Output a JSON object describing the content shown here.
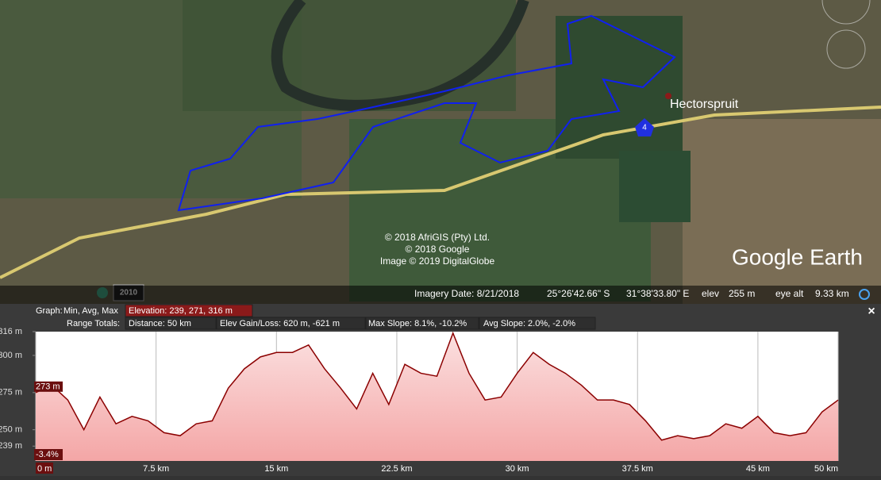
{
  "map": {
    "place": "Hectorspruit",
    "route_shield": "4",
    "history_year": "2010",
    "copyright": [
      "© 2018 AfriGIS (Pty) Ltd.",
      "© 2018 Google",
      "Image © 2019 DigitalGlobe"
    ],
    "logo": "Google Earth",
    "status": {
      "imagery_date": "Imagery Date: 8/21/2018",
      "lat": "25°26'42.66\" S",
      "lon": "31°38'33.80\" E",
      "elev_label": "elev",
      "elev": "255 m",
      "eye_alt_label": "eye alt",
      "eye_alt": "9.33 km"
    }
  },
  "stats": {
    "graph_label": "Graph:",
    "graph_mode": "Min, Avg, Max",
    "elevation": "Elevation: 239, 271, 316 m",
    "range_label": "Range Totals:",
    "distance": "Distance: 50 km",
    "gain_loss": "Elev Gain/Loss: 620 m, -621 m",
    "max_slope": "Max Slope: 8.1%, -10.2%",
    "avg_slope": "Avg Slope: 2.0%, -2.0%",
    "close": "×"
  },
  "cursor": {
    "elevation": "273 m",
    "slope": "-3.4%"
  },
  "chart_data": {
    "type": "area",
    "color": "#8b0000",
    "x": [
      0,
      1,
      2,
      3,
      4,
      5,
      6,
      7,
      8,
      9,
      10,
      11,
      12,
      13,
      14,
      15,
      16,
      17,
      18,
      19,
      20,
      21,
      22,
      23,
      24,
      25,
      26,
      27,
      28,
      29,
      30,
      31,
      32,
      33,
      34,
      35,
      36,
      37,
      38,
      39,
      40,
      41,
      42,
      43,
      44,
      45,
      46,
      47,
      48,
      49,
      50
    ],
    "values": [
      275,
      280,
      270,
      250,
      272,
      254,
      259,
      256,
      248,
      246,
      254,
      256,
      278,
      291,
      299,
      302,
      302,
      307,
      291,
      278,
      264,
      288,
      267,
      294,
      288,
      286,
      315,
      288,
      270,
      272,
      288,
      302,
      294,
      288,
      280,
      270,
      270,
      267,
      256,
      243,
      246,
      244,
      246,
      254,
      251,
      259,
      248,
      246,
      248,
      262,
      270
    ],
    "xlim": [
      0,
      50
    ],
    "ylim": [
      229,
      316
    ],
    "xticks": [
      {
        "value": 0,
        "label": "0 m"
      },
      {
        "value": 7.5,
        "label": "7.5 km"
      },
      {
        "value": 15,
        "label": "15 km"
      },
      {
        "value": 22.5,
        "label": "22.5 km"
      },
      {
        "value": 30,
        "label": "30 km"
      },
      {
        "value": 37.5,
        "label": "37.5 km"
      },
      {
        "value": 45,
        "label": "45 km"
      },
      {
        "value": 50,
        "label": "50 km"
      }
    ],
    "yticks": [
      {
        "value": 239,
        "label": "239 m"
      },
      {
        "value": 250,
        "label": "250 m"
      },
      {
        "value": 275,
        "label": "275 m"
      },
      {
        "value": 300,
        "label": "300 m"
      },
      {
        "value": 316,
        "label": "316 m"
      }
    ],
    "grid": true
  }
}
